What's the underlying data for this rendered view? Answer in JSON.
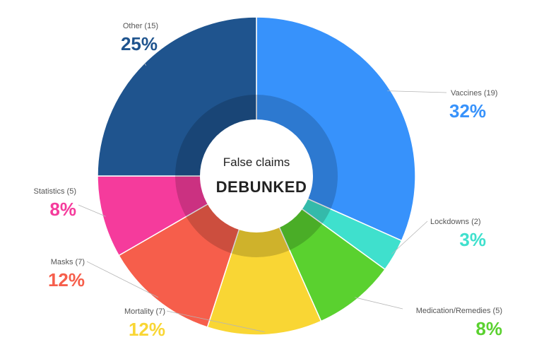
{
  "chart_data": {
    "type": "pie",
    "variant": "donut",
    "center": {
      "title": "False claims",
      "subtitle": "DEBUNKED"
    },
    "slices": [
      {
        "name": "Vaccines",
        "count": 19,
        "count_label": "(19)",
        "percent": 32,
        "percent_label": "32%",
        "color": "#3792fb"
      },
      {
        "name": "Lockdowns",
        "count": 2,
        "count_label": "(2)",
        "percent": 3,
        "percent_label": "3%",
        "color": "#3fe0cd"
      },
      {
        "name": "Medication/Remedies",
        "count": 5,
        "count_label": "(5)",
        "percent": 8,
        "percent_label": "8%",
        "color": "#5ad12f"
      },
      {
        "name": "Mortality",
        "count": 7,
        "count_label": "(7)",
        "percent": 12,
        "percent_label": "12%",
        "color": "#f9d634"
      },
      {
        "name": "Masks",
        "count": 7,
        "count_label": "(7)",
        "percent": 12,
        "percent_label": "12%",
        "color": "#f65e4b"
      },
      {
        "name": "Statistics",
        "count": 5,
        "count_label": "(5)",
        "percent": 8,
        "percent_label": "8%",
        "color": "#f53b9c"
      },
      {
        "name": "Other",
        "count": 15,
        "count_label": "(15)",
        "percent": 25,
        "percent_label": "25%",
        "color": "#1f548e"
      }
    ]
  }
}
